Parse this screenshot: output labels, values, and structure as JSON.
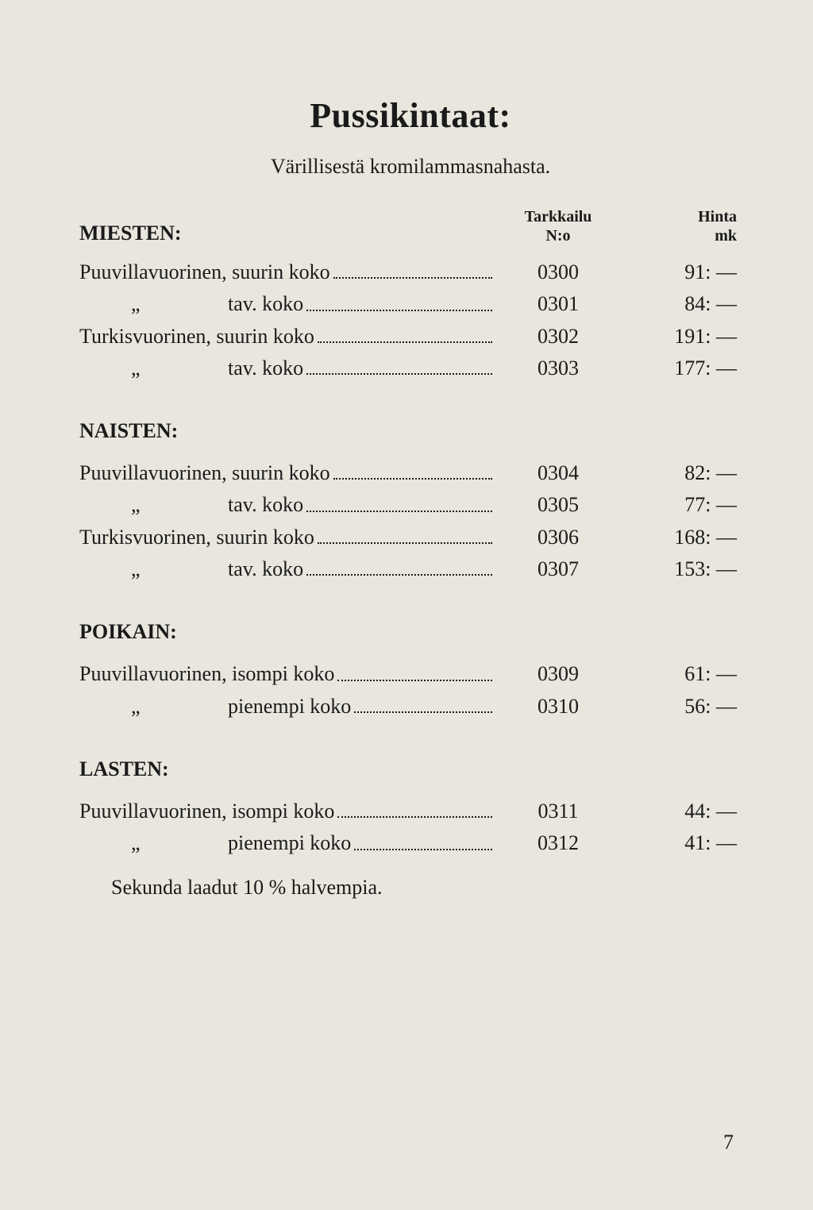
{
  "title": "Pussikintaat:",
  "subtitle": "Värillisestä kromilammasnahasta.",
  "columns": {
    "code_line1": "Tarkkailu",
    "code_line2": "N:o",
    "price_line1": "Hinta",
    "price_line2": "mk"
  },
  "sections": [
    {
      "heading": "MIESTEN:",
      "show_col_heads": true,
      "rows": [
        {
          "desc": "Puuvillavuorinen, suurin koko",
          "code": "0300",
          "price": "91: —"
        },
        {
          "desc": "          „                 tav. koko",
          "code": "0301",
          "price": "84: —"
        },
        {
          "desc": "Turkisvuorinen, suurin koko",
          "code": "0302",
          "price": "191: —"
        },
        {
          "desc": "          „                 tav. koko",
          "code": "0303",
          "price": "177: —"
        }
      ]
    },
    {
      "heading": "NAISTEN:",
      "show_col_heads": false,
      "rows": [
        {
          "desc": "Puuvillavuorinen, suurin koko",
          "code": "0304",
          "price": "82: —"
        },
        {
          "desc": "          „                 tav. koko",
          "code": "0305",
          "price": "77: —"
        },
        {
          "desc": "Turkisvuorinen, suurin koko",
          "code": "0306",
          "price": "168: —"
        },
        {
          "desc": "          „                 tav. koko",
          "code": "0307",
          "price": "153: —"
        }
      ]
    },
    {
      "heading": "POIKAIN:",
      "show_col_heads": false,
      "rows": [
        {
          "desc": "Puuvillavuorinen, isompi koko",
          "code": "0309",
          "price": "61: —"
        },
        {
          "desc": "          „                 pienempi koko",
          "code": "0310",
          "price": "56: —"
        }
      ]
    },
    {
      "heading": "LASTEN:",
      "show_col_heads": false,
      "rows": [
        {
          "desc": "Puuvillavuorinen, isompi koko",
          "code": "0311",
          "price": "44: —"
        },
        {
          "desc": "          „                 pienempi koko",
          "code": "0312",
          "price": "41: —"
        }
      ]
    }
  ],
  "footnote": "Sekunda laadut 10 % halvempia.",
  "page_number": "7",
  "colors": {
    "background": "#e8e6dd",
    "text": "#1a1a1a"
  },
  "typography": {
    "title_fontsize": 44,
    "body_fontsize": 26,
    "colhead_fontsize": 20,
    "font_family": "Georgia, Times New Roman, serif"
  }
}
